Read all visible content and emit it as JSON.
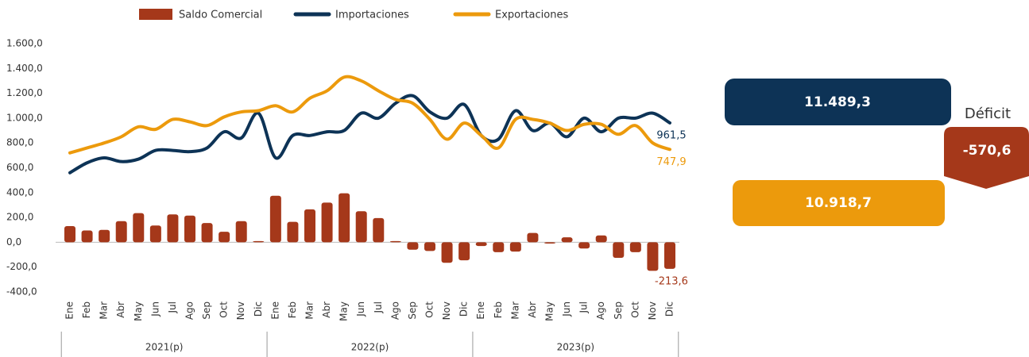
{
  "chart_data": {
    "type": "bar",
    "categories": [
      "Ene",
      "Feb",
      "Mar",
      "Abr",
      "May",
      "Jun",
      "Jul",
      "Ago",
      "Sep",
      "Oct",
      "Nov",
      "Dic",
      "Ene",
      "Feb",
      "Mar",
      "Abr",
      "May",
      "Jun",
      "Jul",
      "Ago",
      "Sep",
      "Oct",
      "Nov",
      "Dic",
      "Ene",
      "Feb",
      "Mar",
      "Abr",
      "May",
      "Jun",
      "Jul",
      "Ago",
      "Sep",
      "Oct",
      "Nov",
      "Dic"
    ],
    "groups": [
      "2021(p)",
      "2022(p)",
      "2023(p)"
    ],
    "series": [
      {
        "name": "Saldo Comercial",
        "type": "bar",
        "color": "#a5381a",
        "values": [
          130,
          95,
          100,
          170,
          235,
          135,
          225,
          215,
          155,
          85,
          170,
          10,
          375,
          165,
          265,
          320,
          395,
          250,
          195,
          10,
          -60,
          -70,
          -165,
          -145,
          -30,
          -80,
          -75,
          75,
          -10,
          40,
          -50,
          55,
          -125,
          -80,
          -230,
          -213.6
        ],
        "value_labels": [
          null,
          null,
          null,
          null,
          null,
          null,
          null,
          null,
          null,
          null,
          null,
          null,
          null,
          null,
          null,
          null,
          null,
          null,
          null,
          null,
          null,
          null,
          null,
          null,
          null,
          null,
          null,
          null,
          null,
          null,
          null,
          null,
          null,
          null,
          null,
          "-213,6"
        ]
      },
      {
        "name": "Importaciones",
        "type": "line",
        "color": "#0d3356",
        "values": [
          560,
          640,
          680,
          650,
          670,
          740,
          740,
          730,
          760,
          890,
          840,
          1040,
          680,
          860,
          860,
          890,
          900,
          1040,
          1000,
          1120,
          1180,
          1050,
          1000,
          1110,
          860,
          830,
          1060,
          900,
          960,
          850,
          1000,
          890,
          1000,
          1000,
          1040,
          961.5
        ],
        "value_labels": [
          null,
          null,
          null,
          null,
          null,
          null,
          null,
          null,
          null,
          null,
          null,
          null,
          null,
          null,
          null,
          null,
          null,
          null,
          null,
          null,
          null,
          null,
          null,
          null,
          null,
          null,
          null,
          null,
          null,
          null,
          null,
          null,
          null,
          null,
          null,
          "961,5"
        ]
      },
      {
        "name": "Exportaciones",
        "type": "line",
        "color": "#ec9a0c",
        "values": [
          720,
          760,
          800,
          850,
          930,
          910,
          990,
          970,
          940,
          1010,
          1050,
          1060,
          1100,
          1050,
          1160,
          1220,
          1330,
          1300,
          1220,
          1150,
          1120,
          990,
          830,
          960,
          860,
          760,
          990,
          990,
          960,
          900,
          950,
          950,
          870,
          940,
          800,
          747.9
        ],
        "value_labels": [
          null,
          null,
          null,
          null,
          null,
          null,
          null,
          null,
          null,
          null,
          null,
          null,
          null,
          null,
          null,
          null,
          null,
          null,
          null,
          null,
          null,
          null,
          null,
          null,
          null,
          null,
          null,
          null,
          null,
          null,
          null,
          null,
          null,
          null,
          null,
          "747,9"
        ]
      }
    ],
    "ylim": [
      -400,
      1600
    ],
    "yticks": [
      {
        "value": -400,
        "label": "-400,0"
      },
      {
        "value": -200,
        "label": "-200,0"
      },
      {
        "value": 0,
        "label": "0,0"
      },
      {
        "value": 200,
        "label": "200,0"
      },
      {
        "value": 400,
        "label": "400,0"
      },
      {
        "value": 600,
        "label": "600,0"
      },
      {
        "value": 800,
        "label": "800,0"
      },
      {
        "value": 1000,
        "label": "1.000,0"
      },
      {
        "value": 1200,
        "label": "1.200,0"
      },
      {
        "value": 1400,
        "label": "1.400,0"
      },
      {
        "value": 1600,
        "label": "1.600,0"
      }
    ],
    "grid": false,
    "legend": "top"
  },
  "summary": {
    "imports": "11.489,3",
    "exports": "10.918,7",
    "deficit_label": "Déficit",
    "deficit": "-570,6"
  }
}
